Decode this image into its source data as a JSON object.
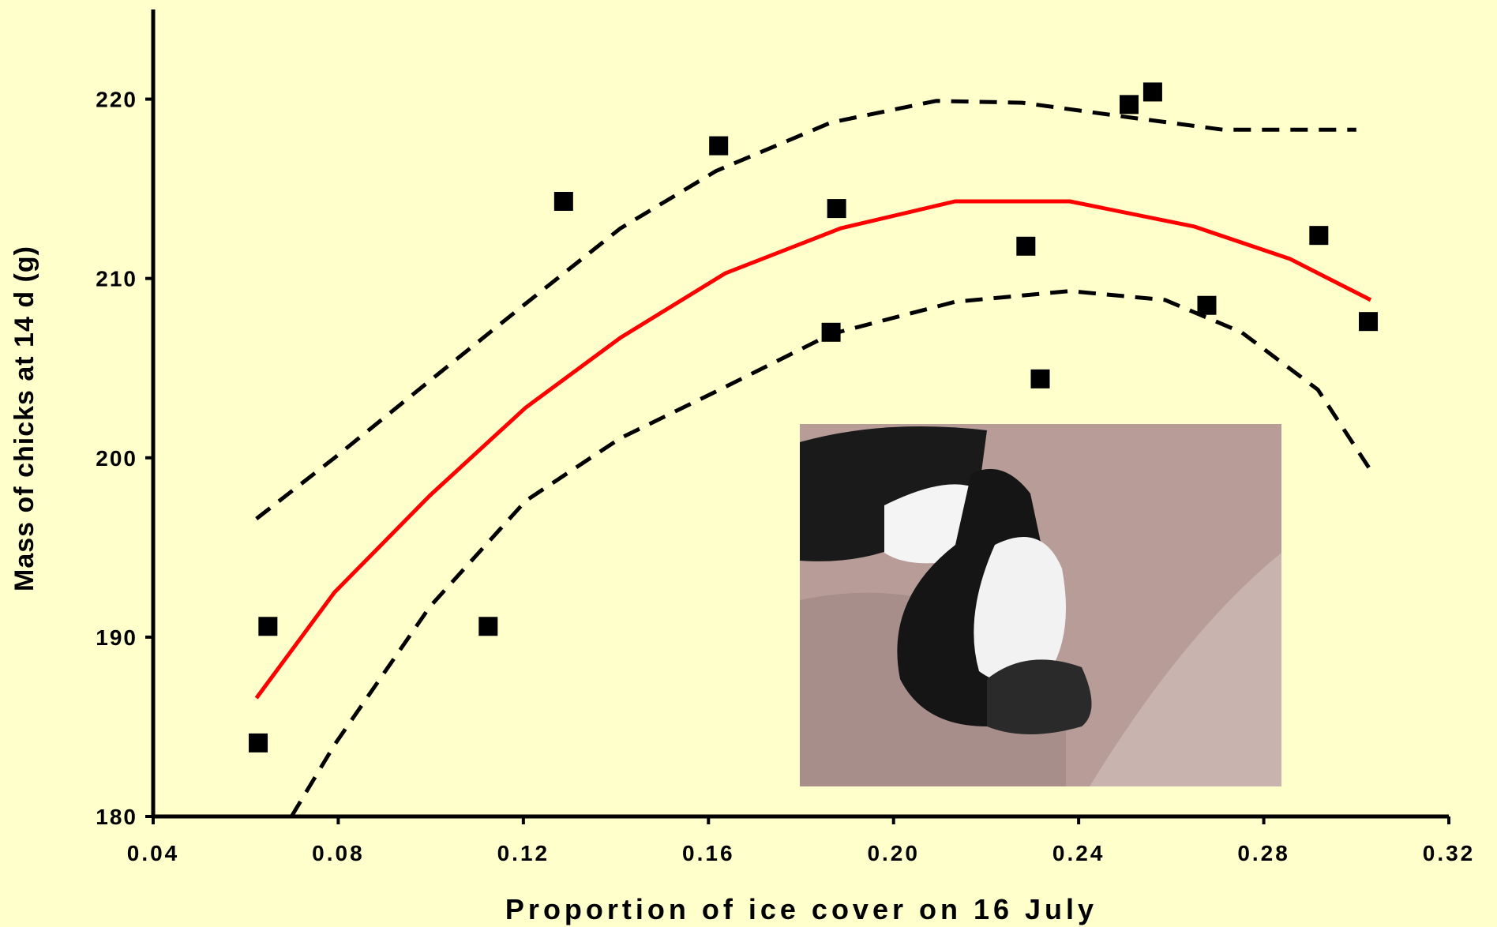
{
  "chart_data": {
    "type": "scatter",
    "xlabel": "Proportion of ice cover on 16 July",
    "ylabel": "Mass of chicks at 14 d (g)",
    "xlim": [
      0.04,
      0.32
    ],
    "ylim": [
      180,
      225
    ],
    "xticks": [
      {
        "value": 0.04,
        "label": "0.04"
      },
      {
        "value": 0.08,
        "label": "0.08"
      },
      {
        "value": 0.12,
        "label": "0.12"
      },
      {
        "value": 0.16,
        "label": "0.16"
      },
      {
        "value": 0.2,
        "label": "0.20"
      },
      {
        "value": 0.24,
        "label": "0.24"
      },
      {
        "value": 0.28,
        "label": "0.28"
      },
      {
        "value": 0.32,
        "label": "0.32"
      }
    ],
    "yticks": [
      180,
      190,
      200,
      210,
      220
    ],
    "series": [
      {
        "style": "markers",
        "color": "#000000",
        "x": [
          0.0627,
          0.0648,
          0.1124,
          0.1287,
          0.1622,
          0.1877,
          0.1865,
          0.2286,
          0.2317,
          0.2509,
          0.256,
          0.2677,
          0.2919,
          0.3026
        ],
        "values": [
          184.1,
          190.6,
          190.6,
          214.3,
          217.4,
          213.9,
          207.0,
          211.8,
          204.4,
          219.7,
          220.4,
          208.5,
          212.4,
          207.6
        ]
      },
      {
        "style": "solid",
        "color": "#ff0000",
        "x": [
          0.0623,
          0.0792,
          0.0998,
          0.1205,
          0.141,
          0.1637,
          0.1886,
          0.2133,
          0.2381,
          0.2649,
          0.2856,
          0.3031
        ],
        "values": [
          186.6,
          192.5,
          197.9,
          202.8,
          206.7,
          210.3,
          212.8,
          214.3,
          214.3,
          212.9,
          211.1,
          208.8
        ]
      },
      {
        "style": "dashed",
        "color": "#000000",
        "x": [
          0.0623,
          0.0792,
          0.0998,
          0.1205,
          0.141,
          0.1617,
          0.1865,
          0.2092,
          0.2278,
          0.2505,
          0.2711,
          0.3
        ],
        "values": [
          196.6,
          200.0,
          204.3,
          208.6,
          212.8,
          216.0,
          218.7,
          219.9,
          219.8,
          219.0,
          218.3,
          218.3
        ]
      },
      {
        "style": "dashed",
        "color": "#000000",
        "x": [
          0.0699,
          0.0792,
          0.0998,
          0.1205,
          0.141,
          0.1617,
          0.1865,
          0.2133,
          0.2381,
          0.2587,
          0.2752,
          0.2917,
          0.3031
        ],
        "values": [
          180.0,
          184.0,
          191.7,
          197.6,
          201.1,
          203.7,
          206.9,
          208.7,
          209.3,
          208.8,
          207.0,
          203.8,
          199.3
        ]
      }
    ]
  }
}
